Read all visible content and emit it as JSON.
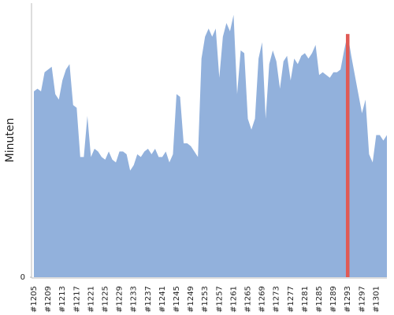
{
  "chart_data": {
    "type": "area",
    "y_label": "Minuten",
    "categories": [
      "#1205",
      null,
      null,
      null,
      "#1209",
      null,
      null,
      null,
      "#1213",
      null,
      null,
      null,
      "#1217",
      null,
      null,
      null,
      "#1221",
      null,
      null,
      null,
      "#1225",
      null,
      null,
      null,
      "#1229",
      null,
      null,
      null,
      "#1233",
      null,
      null,
      null,
      "#1237",
      null,
      null,
      null,
      "#1241",
      null,
      null,
      null,
      "#1245",
      null,
      null,
      null,
      "#1249",
      null,
      null,
      null,
      "#1253",
      null,
      null,
      null,
      "#1257",
      null,
      null,
      null,
      "#1261",
      null,
      null,
      null,
      "#1265",
      null,
      null,
      null,
      "#1269",
      null,
      null,
      null,
      "#1273",
      null,
      null,
      null,
      "#1277",
      null,
      null,
      null,
      "#1281",
      null,
      null,
      null,
      "#1285",
      null,
      null,
      null,
      "#1289",
      null,
      null,
      null,
      "#1293",
      null,
      null,
      null,
      "#1297",
      null,
      null,
      null,
      "#1301",
      null,
      null,
      null
    ],
    "values": [
      68,
      69,
      68,
      75,
      76,
      77,
      67,
      65,
      72,
      76,
      78,
      63,
      62,
      44,
      44,
      59,
      44,
      47,
      46,
      44,
      43,
      46,
      43,
      42,
      46,
      46,
      45,
      39,
      41,
      45,
      44,
      46,
      47,
      45,
      47,
      44,
      44,
      46,
      42,
      45,
      67,
      66,
      49,
      49,
      48,
      46,
      44,
      80,
      88,
      91,
      88,
      91,
      73,
      88,
      93,
      90,
      96,
      67,
      83,
      82,
      58,
      54,
      58,
      80,
      86,
      58,
      78,
      83,
      79,
      69,
      79,
      81,
      72,
      80,
      78,
      81,
      82,
      80,
      82,
      85,
      74,
      75,
      74,
      73,
      75,
      75,
      76,
      83,
      89,
      81,
      74,
      67,
      60,
      65,
      45,
      42,
      52,
      52,
      50,
      52
    ],
    "color": "#92b1dc",
    "highlight": {
      "index": 88,
      "color": "#e05a55"
    },
    "ylim": [
      0,
      100
    ],
    "yticks": [
      0
    ]
  }
}
